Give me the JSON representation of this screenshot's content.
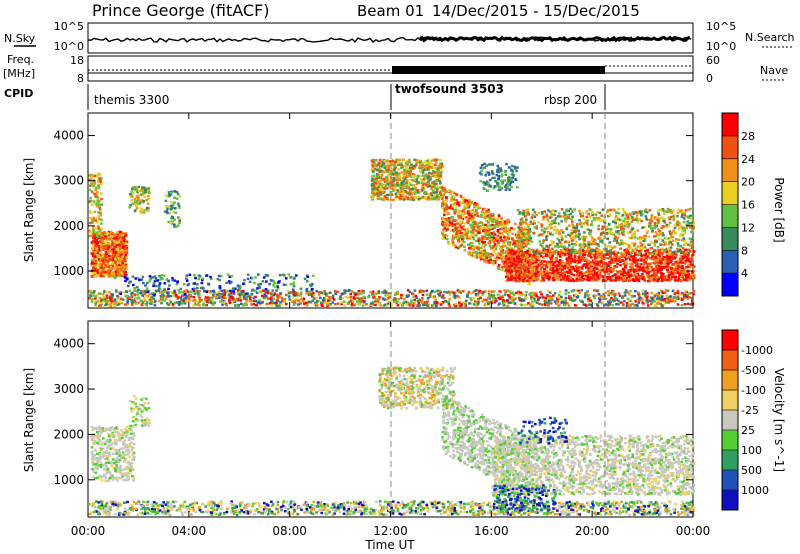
{
  "header": {
    "station": "Prince George (fitACF)",
    "beam": "Beam 01",
    "date_range": "14/Dec/2015 - 15/Dec/2015"
  },
  "noise_panel": {
    "left_label": "N.Sky",
    "right_label": "N.Search",
    "left_ticks": [
      "10^5",
      "10^0"
    ],
    "right_ticks": [
      "10^5",
      "10^0"
    ]
  },
  "freq_panel": {
    "left_label_1": "Freq.",
    "left_label_2": "[MHz]",
    "right_label": "Nave",
    "left_ticks": [
      "18",
      "8"
    ],
    "right_ticks": [
      "60",
      "0"
    ]
  },
  "cpid_panel": {
    "label": "CPID",
    "programs": [
      {
        "name": "themis 3300",
        "start_hour": 0
      },
      {
        "name": "twofsound 3503",
        "start_hour": 12
      },
      {
        "name": "rbsp 200",
        "start_hour": 20.5
      }
    ]
  },
  "x_axis": {
    "label": "Time UT",
    "ticks": [
      "00:00",
      "04:00",
      "08:00",
      "12:00",
      "16:00",
      "20:00",
      "00:00"
    ],
    "range_hours": [
      0,
      24
    ]
  },
  "chart_data": [
    {
      "type": "heatmap",
      "ylabel": "Slant Range [km]",
      "yticks": [
        1000,
        2000,
        3000,
        4000
      ],
      "ylim": [
        180,
        4500
      ],
      "colorbar": {
        "label": "Power [dB]",
        "ticks": [
          "4",
          "8",
          "12",
          "16",
          "20",
          "24",
          "28"
        ],
        "colors": [
          "#0000ff",
          "#2a5fb5",
          "#3a8a60",
          "#60c040",
          "#e8d020",
          "#f09018",
          "#f05010",
          "#ff0000"
        ]
      }
    },
    {
      "type": "heatmap",
      "ylabel": "Slant Range [km]",
      "yticks": [
        1000,
        2000,
        3000,
        4000
      ],
      "ylim": [
        180,
        4500
      ],
      "colorbar": {
        "label": "Velocity [m s^-1]",
        "ticks": [
          "1000",
          "500",
          "100",
          "25",
          "-25",
          "-100",
          "-500",
          "-1000"
        ],
        "colors": [
          "#1010c0",
          "#2050b8",
          "#30a060",
          "#50d030",
          "#c8c8c0",
          "#f0d060",
          "#f0a020",
          "#f06010",
          "#ff0000"
        ]
      }
    }
  ]
}
